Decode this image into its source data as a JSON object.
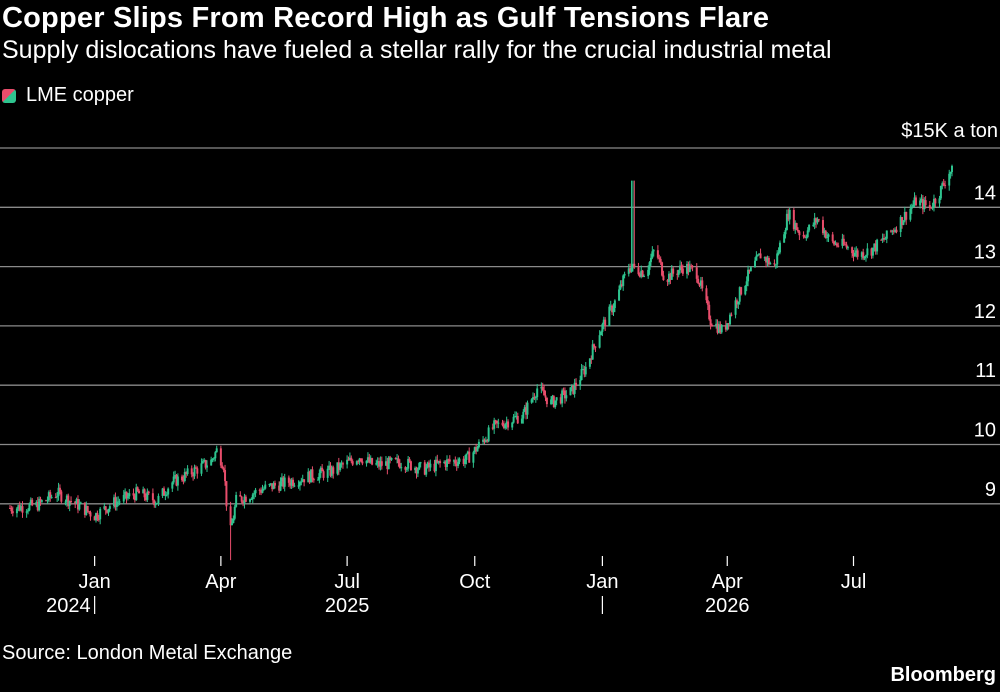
{
  "header": {
    "title": "Copper Slips From Record High as Gulf Tensions Flare",
    "subtitle": "Supply dislocations have fueled a stellar rally for the crucial industrial metal"
  },
  "footer": {
    "source": "Source: London Metal Exchange",
    "brand": "Bloomberg"
  },
  "colors": {
    "background": "#000000",
    "up": "#2ec48f",
    "down": "#e84d6b",
    "grid": "#8a8a8a"
  },
  "chart_data": {
    "type": "candlestick",
    "legend": [
      {
        "name": "LME copper",
        "icon": "candle-swatch-icon"
      }
    ],
    "legend_position": "top-left",
    "y_unit_label": "$15K a ton",
    "y_ticks": [
      "9",
      "10",
      "11",
      "12",
      "13",
      "14"
    ],
    "y_tick_values": [
      9,
      10,
      11,
      12,
      13,
      14
    ],
    "ylim": [
      8,
      15
    ],
    "y_grid": true,
    "x_ticks": [
      {
        "label": "Jan",
        "date": "2024-01-01"
      },
      {
        "label": "Apr",
        "date": "2024-04-01"
      },
      {
        "label": "Jul",
        "date": "2024-07-01"
      },
      {
        "label": "Oct",
        "date": "2024-10-01"
      },
      {
        "label": "Jan",
        "date": "2025-01-01"
      },
      {
        "label": "Apr",
        "date": "2025-04-01"
      },
      {
        "label": "Jul",
        "date": "2025-07-01"
      }
    ],
    "year_labels": [
      {
        "label": "2024",
        "date": "2024-01-01",
        "divider": true
      },
      {
        "label": "2025",
        "date": "2024-07-01",
        "divider": false
      },
      {
        "label": "",
        "date": "2025-01-01",
        "divider": true
      },
      {
        "label": "2026",
        "date": "2025-04-01",
        "divider": false
      }
    ],
    "xlim": [
      "2023-11-01",
      "2025-09-10"
    ],
    "close_series": [
      [
        "2023-11-01",
        8.93
      ],
      [
        "2023-11-20",
        8.97
      ],
      [
        "2023-12-05",
        9.18
      ],
      [
        "2023-12-20",
        8.98
      ],
      [
        "2024-01-01",
        8.8
      ],
      [
        "2024-01-15",
        9.02
      ],
      [
        "2024-02-01",
        9.18
      ],
      [
        "2024-02-15",
        9.05
      ],
      [
        "2024-02-25",
        9.35
      ],
      [
        "2024-03-10",
        9.52
      ],
      [
        "2024-03-25",
        9.72
      ],
      [
        "2024-03-29",
        9.9
      ],
      [
        "2024-04-03",
        9.66
      ],
      [
        "2024-04-07",
        8.4
      ],
      [
        "2024-04-12",
        9.05
      ],
      [
        "2024-05-01",
        9.25
      ],
      [
        "2024-06-01",
        9.45
      ],
      [
        "2024-06-20",
        9.55
      ],
      [
        "2024-07-10",
        9.8
      ],
      [
        "2024-07-20",
        9.65
      ],
      [
        "2024-08-10",
        9.7
      ],
      [
        "2024-08-25",
        9.58
      ],
      [
        "2024-09-10",
        9.7
      ],
      [
        "2024-09-25",
        9.75
      ],
      [
        "2024-10-01",
        9.9
      ],
      [
        "2024-10-15",
        10.3
      ],
      [
        "2024-11-05",
        10.5
      ],
      [
        "2024-11-15",
        10.95
      ],
      [
        "2024-11-25",
        10.7
      ],
      [
        "2024-12-10",
        10.9
      ],
      [
        "2024-12-20",
        11.3
      ],
      [
        "2024-12-30",
        11.9
      ],
      [
        "2025-01-10",
        12.4
      ],
      [
        "2025-01-20",
        13.0
      ],
      [
        "2025-02-01",
        12.9
      ],
      [
        "2025-02-08",
        13.3
      ],
      [
        "2025-02-15",
        12.8
      ],
      [
        "2025-03-01",
        13.0
      ],
      [
        "2025-03-10",
        12.9
      ],
      [
        "2025-03-20",
        12.1
      ],
      [
        "2025-03-29",
        11.9
      ],
      [
        "2025-04-05",
        12.3
      ],
      [
        "2025-04-15",
        12.8
      ],
      [
        "2025-04-25",
        13.2
      ],
      [
        "2025-05-05",
        13.0
      ],
      [
        "2025-05-15",
        13.9
      ],
      [
        "2025-05-25",
        13.5
      ],
      [
        "2025-06-05",
        13.8
      ],
      [
        "2025-06-15",
        13.4
      ],
      [
        "2025-06-25",
        13.35
      ],
      [
        "2025-07-05",
        13.2
      ],
      [
        "2025-07-15",
        13.3
      ],
      [
        "2025-07-25",
        13.5
      ],
      [
        "2025-08-05",
        13.8
      ],
      [
        "2025-08-15",
        14.1
      ],
      [
        "2025-08-25",
        14.0
      ],
      [
        "2025-09-01",
        14.25
      ],
      [
        "2025-09-08",
        14.6
      ]
    ],
    "spikes": [
      {
        "date": "2024-04-07",
        "low": 8.05
      },
      {
        "date": "2025-01-23",
        "high": 14.45
      }
    ]
  }
}
